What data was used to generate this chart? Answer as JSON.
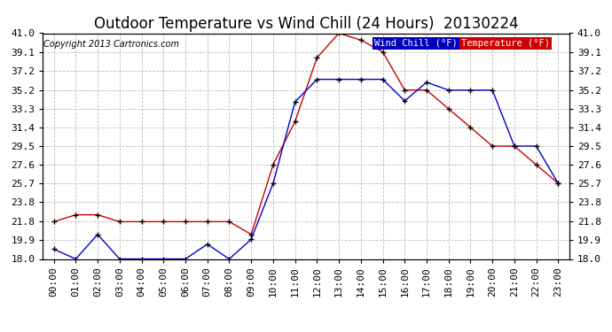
{
  "title": "Outdoor Temperature vs Wind Chill (24 Hours)  20130224",
  "copyright": "Copyright 2013 Cartronics.com",
  "legend_wind_chill": "Wind Chill (°F)",
  "legend_temperature": "Temperature (°F)",
  "x_labels": [
    "00:00",
    "01:00",
    "02:00",
    "03:00",
    "04:00",
    "05:00",
    "06:00",
    "07:00",
    "08:00",
    "09:00",
    "10:00",
    "11:00",
    "12:00",
    "13:00",
    "14:00",
    "15:00",
    "16:00",
    "17:00",
    "18:00",
    "19:00",
    "20:00",
    "21:00",
    "22:00",
    "23:00"
  ],
  "temperature": [
    21.8,
    22.5,
    22.5,
    21.8,
    21.8,
    21.8,
    21.8,
    21.8,
    21.8,
    20.5,
    27.6,
    32.0,
    38.5,
    41.0,
    40.3,
    39.1,
    35.2,
    35.2,
    33.3,
    31.4,
    29.5,
    29.5,
    27.6,
    25.7
  ],
  "wind_chill": [
    19.0,
    18.0,
    20.5,
    18.0,
    18.0,
    18.0,
    18.0,
    19.5,
    18.0,
    20.0,
    25.7,
    34.0,
    36.3,
    36.3,
    36.3,
    36.3,
    34.1,
    36.0,
    35.2,
    35.2,
    35.2,
    29.5,
    29.5,
    25.7
  ],
  "ylim": [
    18.0,
    41.0
  ],
  "yticks": [
    18.0,
    19.9,
    21.8,
    23.8,
    25.7,
    27.6,
    29.5,
    31.4,
    33.3,
    35.2,
    37.2,
    39.1,
    41.0
  ],
  "temp_color": "#cc0000",
  "wind_color": "#0000cc",
  "bg_color": "#ffffff",
  "grid_color": "#bbbbbb",
  "title_fontsize": 12,
  "copyright_fontsize": 7,
  "tick_fontsize": 8,
  "legend_wind_bg": "#0000aa",
  "legend_temp_bg": "#cc0000"
}
